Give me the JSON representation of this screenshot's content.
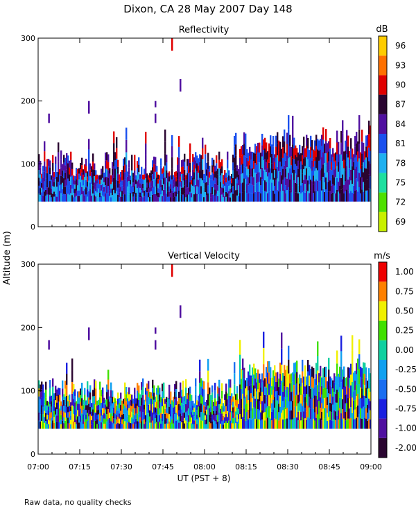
{
  "title": "Dixon, CA 28 May 2007  Day 148",
  "ylabel": "Altitude (m)",
  "xlabel": "UT  (PST + 8)",
  "footnote": "Raw data, no quality checks",
  "chart_data": [
    {
      "type": "heatmap",
      "title": "Reflectivity",
      "ylabel": "Altitude (m)",
      "xlabel": "UT  (PST + 8)",
      "x_range": [
        "07:00",
        "09:00"
      ],
      "ylim": [
        0,
        300
      ],
      "y_ticks": [
        0,
        100,
        200,
        300
      ],
      "x_ticks": [
        "07:00",
        "07:15",
        "07:30",
        "07:45",
        "08:00",
        "08:15",
        "08:30",
        "08:45",
        "09:00"
      ],
      "colorbar": {
        "unit": "dB",
        "ticks": [
          "69",
          "72",
          "75",
          "78",
          "81",
          "84",
          "87",
          "90",
          "93",
          "96"
        ],
        "colors": [
          "#c8f000",
          "#4fe000",
          "#1fdf9f",
          "#1fb0f0",
          "#1a50ee",
          "#5010a0",
          "#2a0530",
          "#e00000",
          "#ff7000",
          "#ffcc00"
        ]
      }
    },
    {
      "type": "heatmap",
      "title": "Vertical Velocity",
      "ylabel": "Altitude (m)",
      "xlabel": "UT  (PST + 8)",
      "x_range": [
        "07:00",
        "09:00"
      ],
      "ylim": [
        0,
        300
      ],
      "y_ticks": [
        0,
        100,
        200,
        300
      ],
      "x_ticks": [
        "07:00",
        "07:15",
        "07:30",
        "07:45",
        "08:00",
        "08:15",
        "08:30",
        "08:45",
        "09:00"
      ],
      "colorbar": {
        "unit": "m/s",
        "ticks": [
          "-2.00",
          "-1.00",
          "-0.75",
          "-0.50",
          "-0.25",
          "0.00",
          "0.25",
          "0.50",
          "0.75",
          "1.00"
        ],
        "colors": [
          "#2a0530",
          "#5010a0",
          "#1a20e0",
          "#1a6ef0",
          "#10a0f0",
          "#10d0a0",
          "#40e000",
          "#f0f000",
          "#ff8000",
          "#ee0000"
        ]
      }
    }
  ]
}
